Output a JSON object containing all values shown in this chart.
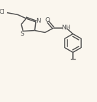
{
  "bg_color": "#faf6ee",
  "bond_color": "#505050",
  "text_color": "#505050",
  "line_width": 1.1,
  "font_size": 6.5,
  "figsize": [
    1.41,
    1.49
  ],
  "dpi": 100,
  "xlim": [
    0,
    14.1
  ],
  "ylim": [
    0,
    14.9
  ]
}
